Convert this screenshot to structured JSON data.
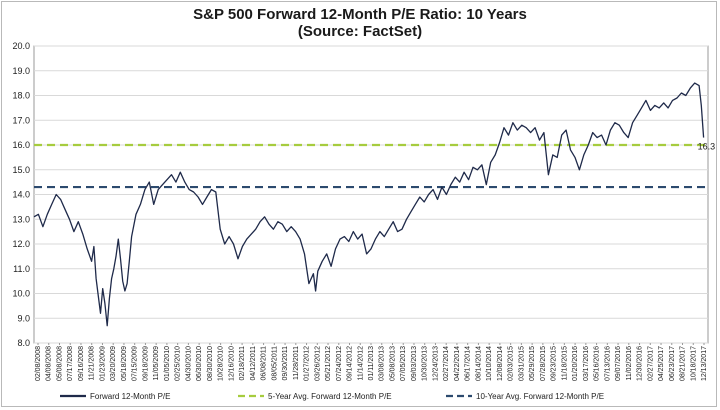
{
  "chart_data": {
    "type": "line",
    "title": "S&P 500 Forward 12-Month P/E Ratio: 10 Years",
    "subtitle": "(Source: FactSet)",
    "ylim": [
      8.0,
      20.0
    ],
    "yticks": [
      "20.0",
      "19.0",
      "18.0",
      "17.0",
      "16.0",
      "15.0",
      "14.0",
      "13.0",
      "12.0",
      "11.0",
      "10.0",
      "9.0",
      "8.0"
    ],
    "xticks": [
      "02/08/2008",
      "04/08/2008",
      "05/08/2008",
      "07/17/2008",
      "09/16/2008",
      "11/21/2008",
      "01/23/2009",
      "03/20/2009",
      "05/18/2009",
      "07/15/2009",
      "09/18/2009",
      "11/05/2009",
      "01/05/2010",
      "02/25/2010",
      "04/30/2010",
      "06/30/2010",
      "08/30/2010",
      "10/28/2010",
      "12/16/2010",
      "02/18/2011",
      "04/12/2011",
      "06/08/2011",
      "08/05/2011",
      "09/30/2011",
      "11/28/2011",
      "01/27/2012",
      "03/26/2012",
      "05/21/2012",
      "07/24/2012",
      "09/14/2012",
      "11/14/2012",
      "01/11/2013",
      "03/08/2013",
      "05/08/2013",
      "07/05/2013",
      "09/03/2013",
      "10/30/2013",
      "12/24/2013",
      "02/27/2014",
      "04/22/2014",
      "06/17/2014",
      "08/14/2014",
      "10/10/2014",
      "12/08/2014",
      "02/03/2015",
      "03/31/2015",
      "05/29/2015",
      "07/28/2015",
      "09/23/2015",
      "11/18/2015",
      "01/20/2016",
      "03/17/2016",
      "05/16/2016",
      "07/13/2016",
      "09/07/2016",
      "11/02/2016",
      "12/30/2016",
      "02/27/2017",
      "04/25/2017",
      "06/23/2017",
      "08/21/2017",
      "10/18/2017",
      "12/13/2017"
    ],
    "series": [
      {
        "name": "Forward 12-Month P/E",
        "color": "#1f2a4a",
        "values": [
          [
            0,
            13.1
          ],
          [
            2,
            13.2
          ],
          [
            4,
            12.7
          ],
          [
            6,
            13.2
          ],
          [
            8,
            13.6
          ],
          [
            10,
            14.0
          ],
          [
            12,
            13.8
          ],
          [
            14,
            13.4
          ],
          [
            16,
            13.0
          ],
          [
            18,
            12.5
          ],
          [
            20,
            12.9
          ],
          [
            22,
            12.4
          ],
          [
            24,
            11.8
          ],
          [
            26,
            11.3
          ],
          [
            27,
            11.9
          ],
          [
            28,
            10.6
          ],
          [
            29,
            9.9
          ],
          [
            30,
            9.2
          ],
          [
            31,
            10.2
          ],
          [
            32,
            9.6
          ],
          [
            33,
            8.7
          ],
          [
            34,
            9.8
          ],
          [
            35,
            10.6
          ],
          [
            36,
            11.0
          ],
          [
            37,
            11.5
          ],
          [
            38,
            12.2
          ],
          [
            39,
            11.4
          ],
          [
            40,
            10.5
          ],
          [
            41,
            10.1
          ],
          [
            42,
            10.4
          ],
          [
            43,
            11.3
          ],
          [
            44,
            12.3
          ],
          [
            46,
            13.2
          ],
          [
            48,
            13.6
          ],
          [
            50,
            14.2
          ],
          [
            52,
            14.5
          ],
          [
            54,
            13.6
          ],
          [
            56,
            14.2
          ],
          [
            58,
            14.4
          ],
          [
            60,
            14.6
          ],
          [
            62,
            14.8
          ],
          [
            64,
            14.5
          ],
          [
            66,
            14.9
          ],
          [
            68,
            14.5
          ],
          [
            70,
            14.2
          ],
          [
            72,
            14.1
          ],
          [
            74,
            13.9
          ],
          [
            76,
            13.6
          ],
          [
            78,
            13.9
          ],
          [
            80,
            14.2
          ],
          [
            82,
            14.1
          ],
          [
            84,
            12.6
          ],
          [
            86,
            12.0
          ],
          [
            88,
            12.3
          ],
          [
            90,
            12.0
          ],
          [
            92,
            11.4
          ],
          [
            94,
            11.9
          ],
          [
            96,
            12.2
          ],
          [
            98,
            12.4
          ],
          [
            100,
            12.6
          ],
          [
            102,
            12.9
          ],
          [
            104,
            13.1
          ],
          [
            106,
            12.8
          ],
          [
            108,
            12.6
          ],
          [
            110,
            12.9
          ],
          [
            112,
            12.8
          ],
          [
            114,
            12.5
          ],
          [
            116,
            12.7
          ],
          [
            118,
            12.5
          ],
          [
            120,
            12.2
          ],
          [
            122,
            11.6
          ],
          [
            124,
            10.4
          ],
          [
            126,
            10.8
          ],
          [
            127,
            10.1
          ],
          [
            128,
            10.9
          ],
          [
            130,
            11.3
          ],
          [
            132,
            11.6
          ],
          [
            134,
            11.1
          ],
          [
            136,
            11.8
          ],
          [
            138,
            12.2
          ],
          [
            140,
            12.3
          ],
          [
            142,
            12.1
          ],
          [
            144,
            12.5
          ],
          [
            146,
            12.2
          ],
          [
            148,
            12.4
          ],
          [
            150,
            11.6
          ],
          [
            152,
            11.8
          ],
          [
            154,
            12.2
          ],
          [
            156,
            12.5
          ],
          [
            158,
            12.3
          ],
          [
            160,
            12.6
          ],
          [
            162,
            12.9
          ],
          [
            164,
            12.5
          ],
          [
            166,
            12.6
          ],
          [
            168,
            13.0
          ],
          [
            170,
            13.3
          ],
          [
            172,
            13.6
          ],
          [
            174,
            13.9
          ],
          [
            176,
            13.7
          ],
          [
            178,
            14.0
          ],
          [
            180,
            14.2
          ],
          [
            182,
            13.8
          ],
          [
            184,
            14.3
          ],
          [
            186,
            14.0
          ],
          [
            188,
            14.4
          ],
          [
            190,
            14.7
          ],
          [
            192,
            14.5
          ],
          [
            194,
            14.9
          ],
          [
            196,
            14.6
          ],
          [
            198,
            15.1
          ],
          [
            200,
            15.0
          ],
          [
            202,
            15.2
          ],
          [
            204,
            14.4
          ],
          [
            206,
            15.3
          ],
          [
            208,
            15.6
          ],
          [
            210,
            16.1
          ],
          [
            212,
            16.7
          ],
          [
            214,
            16.4
          ],
          [
            216,
            16.9
          ],
          [
            218,
            16.6
          ],
          [
            220,
            16.8
          ],
          [
            222,
            16.7
          ],
          [
            224,
            16.5
          ],
          [
            226,
            16.7
          ],
          [
            228,
            16.2
          ],
          [
            230,
            16.5
          ],
          [
            232,
            14.8
          ],
          [
            234,
            15.6
          ],
          [
            236,
            15.5
          ],
          [
            238,
            16.4
          ],
          [
            240,
            16.6
          ],
          [
            242,
            15.8
          ],
          [
            244,
            15.5
          ],
          [
            246,
            15.0
          ],
          [
            248,
            15.6
          ],
          [
            250,
            16.0
          ],
          [
            252,
            16.5
          ],
          [
            254,
            16.3
          ],
          [
            256,
            16.4
          ],
          [
            258,
            16.0
          ],
          [
            260,
            16.6
          ],
          [
            262,
            16.9
          ],
          [
            264,
            16.8
          ],
          [
            266,
            16.5
          ],
          [
            268,
            16.3
          ],
          [
            270,
            16.9
          ],
          [
            272,
            17.2
          ],
          [
            274,
            17.5
          ],
          [
            276,
            17.8
          ],
          [
            278,
            17.4
          ],
          [
            280,
            17.6
          ],
          [
            282,
            17.5
          ],
          [
            284,
            17.7
          ],
          [
            286,
            17.5
          ],
          [
            288,
            17.8
          ],
          [
            290,
            17.9
          ],
          [
            292,
            18.1
          ],
          [
            294,
            18.0
          ],
          [
            296,
            18.3
          ],
          [
            298,
            18.5
          ],
          [
            300,
            18.4
          ],
          [
            301,
            17.6
          ],
          [
            302,
            16.3
          ]
        ]
      },
      {
        "name": "5-Year Avg. Forward 12-Month P/E",
        "color": "#a6cc3e",
        "values": [
          16.0
        ]
      },
      {
        "name": "10-Year Avg. Forward 12-Month P/E",
        "color": "#2c4a6e",
        "values": [
          14.3
        ]
      }
    ],
    "annotations": [
      {
        "text": "16.3"
      }
    ],
    "grid": true,
    "legend_position": "bottom"
  }
}
